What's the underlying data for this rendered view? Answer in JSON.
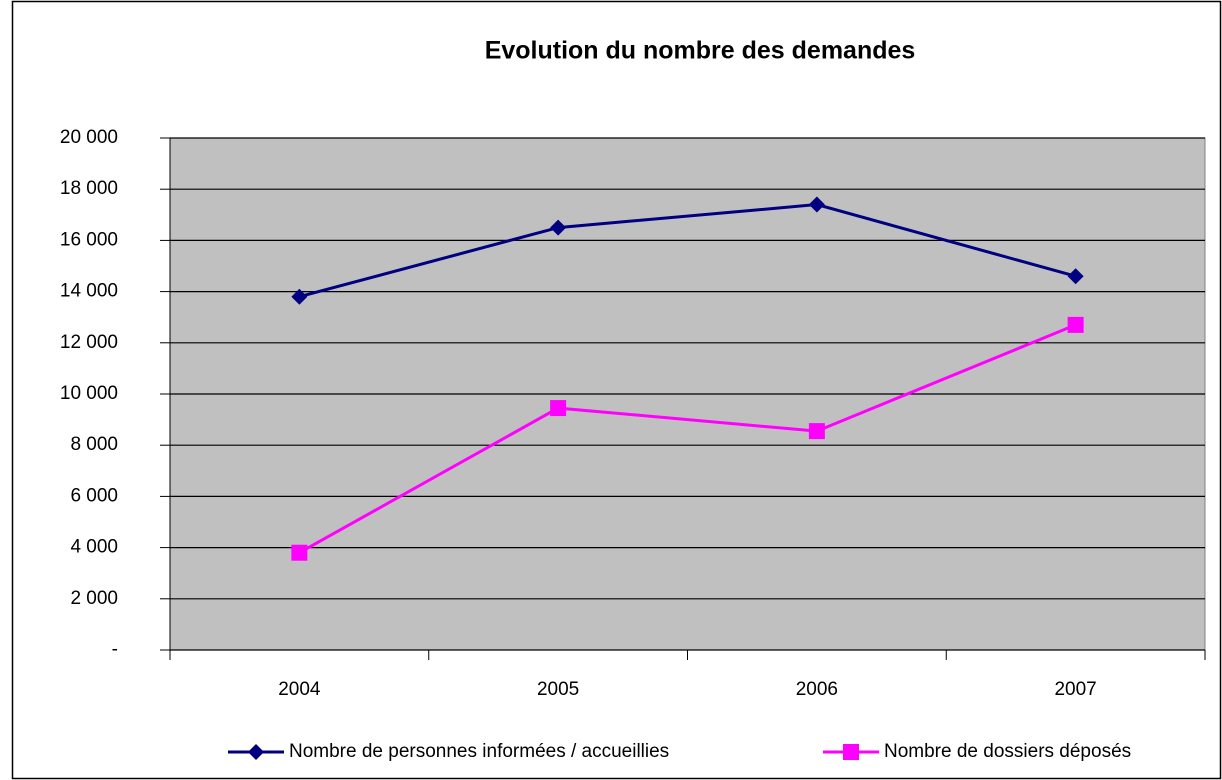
{
  "chart_data": {
    "type": "line",
    "title": "Evolution du nombre des demandes",
    "categories": [
      "2004",
      "2005",
      "2006",
      "2007"
    ],
    "series": [
      {
        "name": "Nombre de personnes informées / accueillies",
        "color": "#000080",
        "marker": "diamond",
        "values": [
          13800,
          16500,
          17400,
          14600
        ]
      },
      {
        "name": "Nombre de dossiers déposés",
        "color": "#ff00ff",
        "marker": "square",
        "values": [
          3800,
          9450,
          8550,
          12700
        ]
      }
    ],
    "ylim": [
      0,
      20000
    ],
    "yticks": [
      {
        "value": 0,
        "label": "-"
      },
      {
        "value": 2000,
        "label": "2 000"
      },
      {
        "value": 4000,
        "label": "4 000"
      },
      {
        "value": 6000,
        "label": "6 000"
      },
      {
        "value": 8000,
        "label": "8 000"
      },
      {
        "value": 10000,
        "label": "10 000"
      },
      {
        "value": 12000,
        "label": "12 000"
      },
      {
        "value": 14000,
        "label": "14 000"
      },
      {
        "value": 16000,
        "label": "16 000"
      },
      {
        "value": 18000,
        "label": "18 000"
      },
      {
        "value": 20000,
        "label": "20 000"
      }
    ],
    "grid": true,
    "legend": "bottom",
    "plot_background": "#c0c0c0"
  }
}
